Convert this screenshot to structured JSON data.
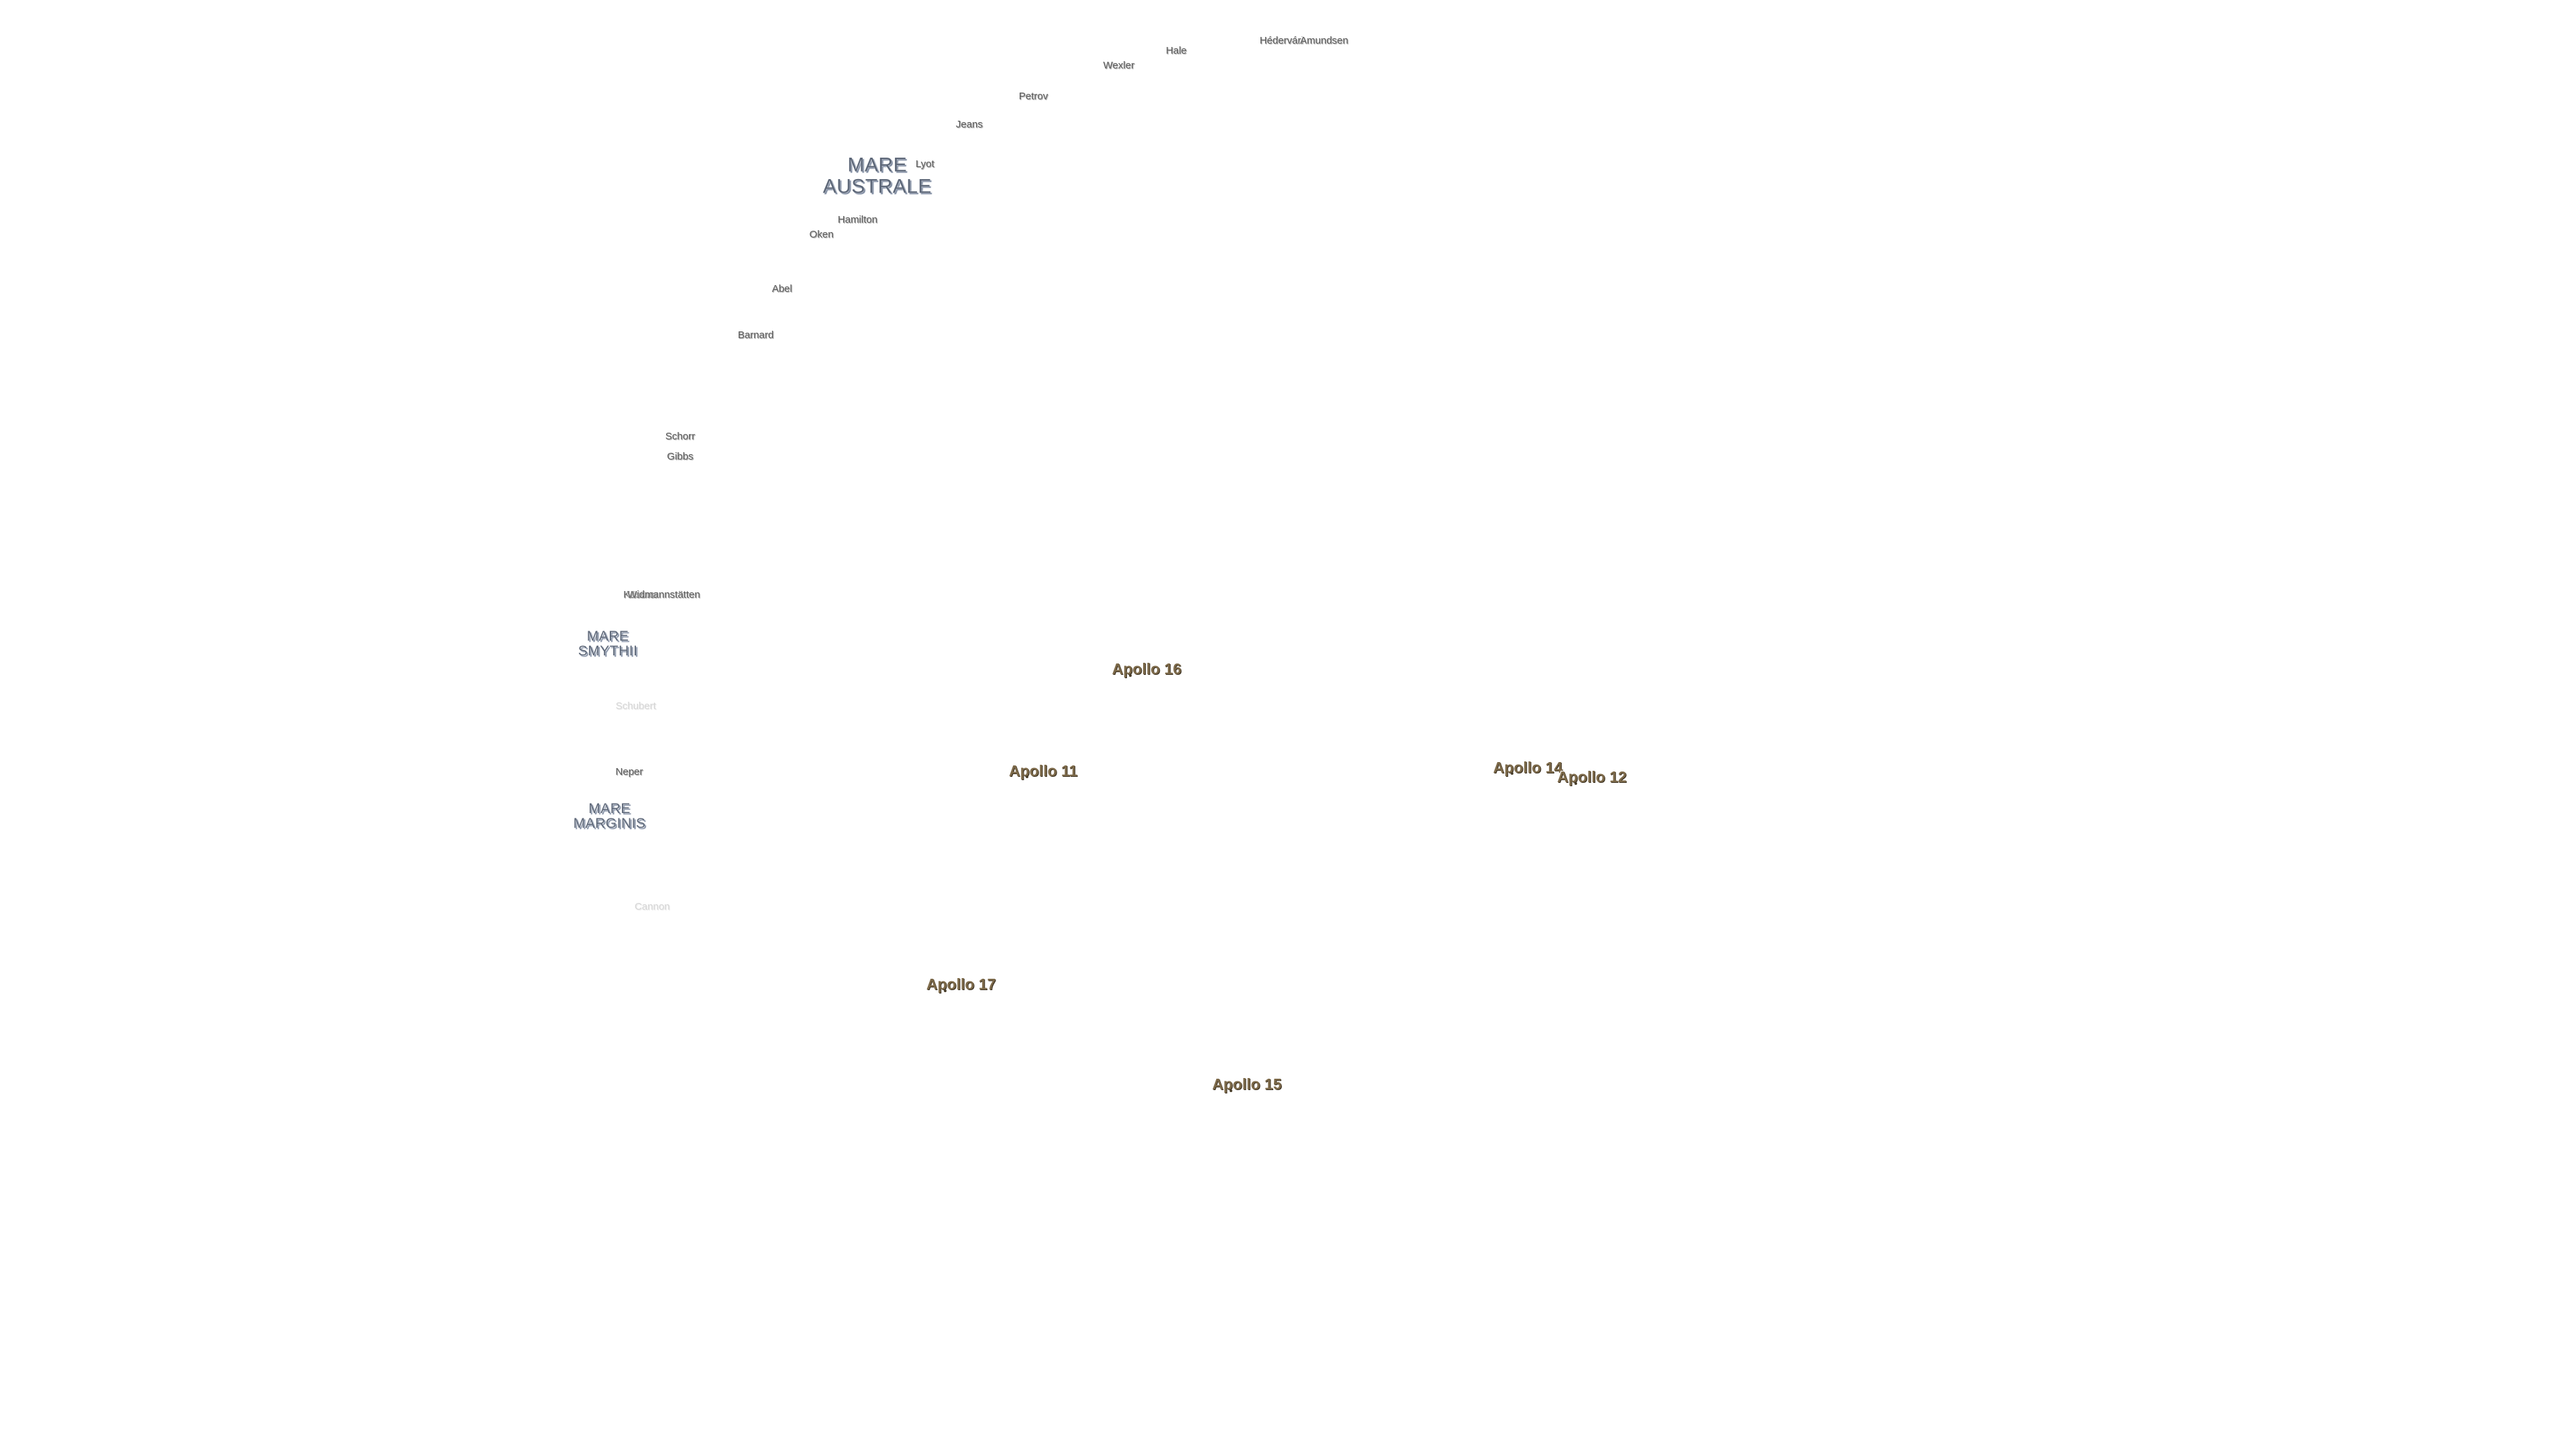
{
  "craters": [
    "Hédervári",
    "Amundsen",
    "Hale",
    "Wexler",
    "Petrov",
    "Jeans",
    "Lyot",
    "Hamilton",
    "Oken",
    "Abel",
    "Barnard",
    "Schorr",
    "Gibbs",
    "Kästner",
    "Widmannstätten",
    "Neper",
    "Schubert",
    "Cannon"
  ],
  "maria": [
    "MARE AUSTRALE",
    "MARE SMYTHII",
    "MARE MARGINIS"
  ],
  "landing_sites": [
    "Apollo 16",
    "Apollo 11",
    "Apollo 14",
    "Apollo 12",
    "Apollo 17",
    "Apollo 15"
  ]
}
